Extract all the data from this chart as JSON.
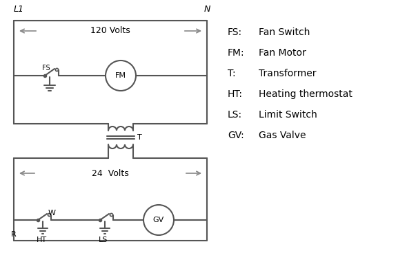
{
  "bg_color": "#ffffff",
  "line_color": "#555555",
  "text_color": "#000000",
  "legend_items": [
    [
      "FS:",
      "Fan Switch"
    ],
    [
      "FM:",
      "Fan Motor"
    ],
    [
      "T:",
      "Transformer"
    ],
    [
      "HT:",
      "Heating thermostat"
    ],
    [
      "LS:",
      "Limit Switch"
    ],
    [
      "GV:",
      "Gas Valve"
    ]
  ],
  "L1_label": "L1",
  "N_label": "N",
  "volts120_label": "120 Volts",
  "volts24_label": "24  Volts",
  "T_label": "T",
  "FS_label": "FS",
  "FM_label": "FM",
  "R_label": "R",
  "W_label": "W",
  "HT_label": "HT",
  "LS_label": "LS",
  "GV_label": "GV"
}
